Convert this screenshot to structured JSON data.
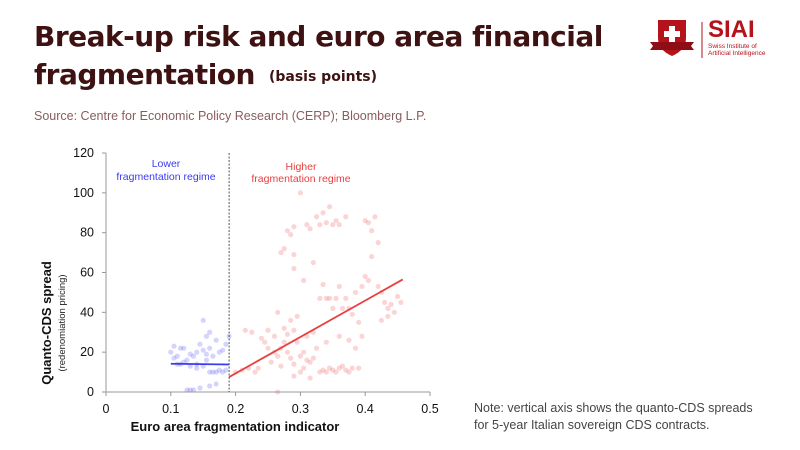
{
  "header": {
    "title_line1": "Break-up risk and euro area financial",
    "title_line2": "fragmentation",
    "title_unit": "(basis points)",
    "source": "Source: Centre for Economic Policy Research (CERP); Bloomberg L.P."
  },
  "logo": {
    "name": "SIAI",
    "subtitle_line1": "Swiss Institute of",
    "subtitle_line2": "Artificial Intelligence",
    "color": "#b5121b"
  },
  "note": {
    "line1": "Note: vertical axis shows the quanto-CDS spreads",
    "line2": "for 5-year Italian sovereign CDS contracts."
  },
  "chart_data": {
    "type": "scatter",
    "xlabel": "Euro area fragmentation indicator",
    "ylabel": "Quanto-CDS spread",
    "ylabel_sub": "(redenomiation pricing)",
    "xlim": [
      0,
      0.5
    ],
    "ylim": [
      0,
      120
    ],
    "x_ticks": [
      "0",
      "0.1",
      "0.2",
      "0.3",
      "0.4",
      "0.5"
    ],
    "y_ticks": [
      "0",
      "20",
      "40",
      "60",
      "80",
      "100",
      "120"
    ],
    "threshold_x": 0.19,
    "annotations": {
      "lower_line1": "Lower",
      "lower_line2": "fragmentation regime",
      "higher_line1": "Higher",
      "higher_line2": "fragmentation regime"
    },
    "series": [
      {
        "name": "Lower fragmentation regime",
        "color": "#3a3af0",
        "fit": [
          [
            0.1,
            14.2
          ],
          [
            0.19,
            13.8
          ]
        ],
        "points": [
          [
            0.1,
            20
          ],
          [
            0.105,
            23
          ],
          [
            0.11,
            18
          ],
          [
            0.115,
            22
          ],
          [
            0.12,
            22
          ],
          [
            0.125,
            16
          ],
          [
            0.13,
            19
          ],
          [
            0.135,
            18
          ],
          [
            0.14,
            20
          ],
          [
            0.145,
            24
          ],
          [
            0.15,
            36
          ],
          [
            0.15,
            21
          ],
          [
            0.155,
            19
          ],
          [
            0.155,
            28
          ],
          [
            0.16,
            30
          ],
          [
            0.16,
            22
          ],
          [
            0.165,
            18
          ],
          [
            0.17,
            26
          ],
          [
            0.175,
            20
          ],
          [
            0.18,
            21
          ],
          [
            0.185,
            24
          ],
          [
            0.19,
            28
          ],
          [
            0.11,
            14
          ],
          [
            0.12,
            15
          ],
          [
            0.13,
            13
          ],
          [
            0.14,
            14
          ],
          [
            0.15,
            13
          ],
          [
            0.16,
            10
          ],
          [
            0.165,
            10
          ],
          [
            0.17,
            10
          ],
          [
            0.175,
            11
          ],
          [
            0.18,
            10
          ],
          [
            0.185,
            11
          ],
          [
            0.125,
            1
          ],
          [
            0.13,
            1
          ],
          [
            0.135,
            1
          ],
          [
            0.145,
            2
          ],
          [
            0.16,
            3
          ],
          [
            0.17,
            4
          ],
          [
            0.14,
            12
          ],
          [
            0.105,
            17
          ],
          [
            0.115,
            14
          ],
          [
            0.155,
            16
          ]
        ]
      },
      {
        "name": "Higher fragmentation regime",
        "color": "#e84040",
        "fit": [
          [
            0.19,
            7.5
          ],
          [
            0.458,
            56.5
          ]
        ],
        "points": [
          [
            0.2,
            10
          ],
          [
            0.21,
            11
          ],
          [
            0.215,
            31
          ],
          [
            0.22,
            12
          ],
          [
            0.225,
            30
          ],
          [
            0.23,
            10
          ],
          [
            0.235,
            12
          ],
          [
            0.24,
            27
          ],
          [
            0.245,
            25
          ],
          [
            0.25,
            22
          ],
          [
            0.25,
            31
          ],
          [
            0.255,
            15
          ],
          [
            0.26,
            20
          ],
          [
            0.26,
            28
          ],
          [
            0.265,
            18
          ],
          [
            0.265,
            40
          ],
          [
            0.27,
            22
          ],
          [
            0.27,
            13
          ],
          [
            0.275,
            25
          ],
          [
            0.275,
            32
          ],
          [
            0.28,
            20
          ],
          [
            0.28,
            29
          ],
          [
            0.285,
            36
          ],
          [
            0.285,
            17
          ],
          [
            0.29,
            14
          ],
          [
            0.29,
            31
          ],
          [
            0.29,
            8
          ],
          [
            0.295,
            25
          ],
          [
            0.295,
            38
          ],
          [
            0.3,
            18
          ],
          [
            0.3,
            10
          ],
          [
            0.305,
            20
          ],
          [
            0.305,
            12
          ],
          [
            0.31,
            16
          ],
          [
            0.31,
            28
          ],
          [
            0.315,
            15
          ],
          [
            0.315,
            7
          ],
          [
            0.32,
            17
          ],
          [
            0.32,
            30
          ],
          [
            0.325,
            22
          ],
          [
            0.33,
            10
          ],
          [
            0.335,
            11
          ],
          [
            0.34,
            10
          ],
          [
            0.345,
            12
          ],
          [
            0.35,
            11
          ],
          [
            0.355,
            10
          ],
          [
            0.36,
            12
          ],
          [
            0.365,
            13
          ],
          [
            0.37,
            11
          ],
          [
            0.375,
            10
          ],
          [
            0.38,
            12
          ],
          [
            0.39,
            12
          ],
          [
            0.265,
            0
          ],
          [
            0.27,
            70
          ],
          [
            0.275,
            72
          ],
          [
            0.28,
            81
          ],
          [
            0.285,
            79
          ],
          [
            0.29,
            83
          ],
          [
            0.29,
            69
          ],
          [
            0.29,
            62
          ],
          [
            0.3,
            100
          ],
          [
            0.305,
            56
          ],
          [
            0.31,
            84
          ],
          [
            0.315,
            82
          ],
          [
            0.32,
            65
          ],
          [
            0.325,
            88
          ],
          [
            0.33,
            84
          ],
          [
            0.335,
            90
          ],
          [
            0.34,
            85
          ],
          [
            0.345,
            93
          ],
          [
            0.35,
            84
          ],
          [
            0.355,
            86
          ],
          [
            0.36,
            84
          ],
          [
            0.37,
            88
          ],
          [
            0.33,
            47
          ],
          [
            0.335,
            54
          ],
          [
            0.34,
            47
          ],
          [
            0.345,
            47
          ],
          [
            0.35,
            42
          ],
          [
            0.355,
            47
          ],
          [
            0.36,
            53
          ],
          [
            0.365,
            42
          ],
          [
            0.37,
            47
          ],
          [
            0.375,
            42
          ],
          [
            0.38,
            39
          ],
          [
            0.385,
            50
          ],
          [
            0.39,
            35
          ],
          [
            0.395,
            53
          ],
          [
            0.4,
            58
          ],
          [
            0.405,
            56
          ],
          [
            0.41,
            68
          ],
          [
            0.415,
            88
          ],
          [
            0.42,
            75
          ],
          [
            0.4,
            86
          ],
          [
            0.405,
            85
          ],
          [
            0.41,
            81
          ],
          [
            0.42,
            53
          ],
          [
            0.425,
            50
          ],
          [
            0.43,
            45
          ],
          [
            0.435,
            42
          ],
          [
            0.44,
            44
          ],
          [
            0.445,
            40
          ],
          [
            0.45,
            48
          ],
          [
            0.455,
            45
          ],
          [
            0.425,
            36
          ],
          [
            0.435,
            38
          ],
          [
            0.34,
            25
          ],
          [
            0.36,
            28
          ],
          [
            0.375,
            26
          ],
          [
            0.385,
            22
          ],
          [
            0.395,
            28
          ]
        ]
      }
    ]
  }
}
